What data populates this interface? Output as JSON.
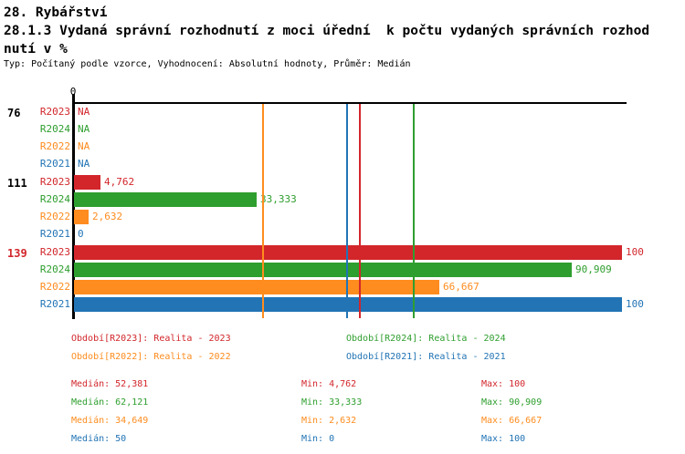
{
  "header": {
    "title": "28. Rybářství",
    "subtitle_line1": "28.1.3 Vydaná správní rozhodnutí z moci úřední  k počtu vydaných správních rozhod",
    "subtitle_line2": "nutí v %",
    "meta": "Typ: Počítaný podle vzorce, Vyhodnocení: Absolutní hodnoty, Průměr: Medián"
  },
  "colors": {
    "R2023": "#d2262b",
    "R2024": "#2e9e2e",
    "R2022": "#ff8c1e",
    "R2021": "#2274b5",
    "axis": "#000000",
    "highlight_label": "#d2262b"
  },
  "chart_data": {
    "type": "bar",
    "orientation": "horizontal",
    "unit": "%",
    "axis": {
      "tick_label": "0",
      "min": 0,
      "max": 100,
      "grid": false
    },
    "series": [
      "R2023",
      "R2024",
      "R2022",
      "R2021"
    ],
    "groups": [
      {
        "label": "76",
        "label_color": "#000000",
        "bars": [
          {
            "series": "R2023",
            "value": null,
            "display": "NA"
          },
          {
            "series": "R2024",
            "value": null,
            "display": "NA"
          },
          {
            "series": "R2022",
            "value": null,
            "display": "NA"
          },
          {
            "series": "R2021",
            "value": null,
            "display": "NA"
          }
        ]
      },
      {
        "label": "111",
        "label_color": "#000000",
        "bars": [
          {
            "series": "R2023",
            "value": 4.762,
            "display": "4,762"
          },
          {
            "series": "R2024",
            "value": 33.333,
            "display": "33,333"
          },
          {
            "series": "R2022",
            "value": 2.632,
            "display": "2,632"
          },
          {
            "series": "R2021",
            "value": 0,
            "display": "0"
          }
        ]
      },
      {
        "label": "139",
        "label_color": "#d2262b",
        "bars": [
          {
            "series": "R2023",
            "value": 100,
            "display": "100"
          },
          {
            "series": "R2024",
            "value": 90.909,
            "display": "90,909"
          },
          {
            "series": "R2022",
            "value": 66.667,
            "display": "66,667"
          },
          {
            "series": "R2021",
            "value": 100,
            "display": "100"
          }
        ]
      }
    ],
    "median_lines": [
      {
        "series": "R2022",
        "value": 34.649
      },
      {
        "series": "R2021",
        "value": 50
      },
      {
        "series": "R2023",
        "value": 52.381
      },
      {
        "series": "R2024",
        "value": 62.121
      }
    ]
  },
  "legend": {
    "items": [
      {
        "series": "R2023",
        "label": "Období[R2023]: Realita - 2023"
      },
      {
        "series": "R2024",
        "label": "Období[R2024]: Realita - 2024"
      },
      {
        "series": "R2022",
        "label": "Období[R2022]: Realita - 2022"
      },
      {
        "series": "R2021",
        "label": "Období[R2021]: Realita - 2021"
      }
    ]
  },
  "stats": {
    "rows": [
      {
        "series": "R2023",
        "median": "Medián: 52,381",
        "min": "Min: 4,762",
        "max": "Max: 100"
      },
      {
        "series": "R2024",
        "median": "Medián: 62,121",
        "min": "Min: 33,333",
        "max": "Max: 90,909"
      },
      {
        "series": "R2022",
        "median": "Medián: 34,649",
        "min": "Min: 2,632",
        "max": "Max: 66,667"
      },
      {
        "series": "R2021",
        "median": "Medián: 50",
        "min": "Min: 0",
        "max": "Max: 100"
      }
    ]
  }
}
